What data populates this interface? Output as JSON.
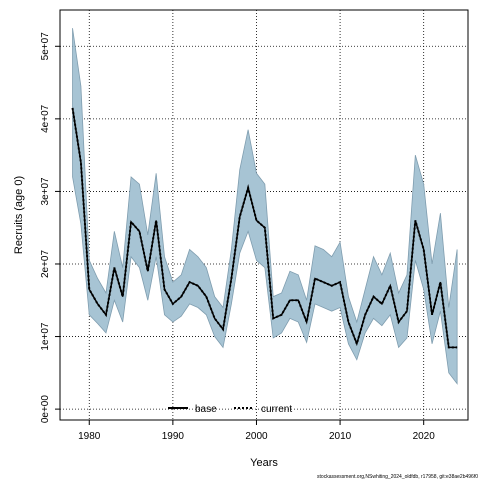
{
  "chart_data": {
    "type": "line",
    "xlabel": "Years",
    "ylabel": "Recruits (age 0)",
    "xlim": [
      1976.5,
      2025.3
    ],
    "ylim": [
      -1500000,
      55000000
    ],
    "x_ticks": [
      1980,
      1990,
      2000,
      2010,
      2020
    ],
    "x_tick_labels": [
      "1980",
      "1990",
      "2000",
      "2010",
      "2020"
    ],
    "y_ticks": [
      0,
      10000000,
      20000000,
      30000000,
      40000000,
      50000000
    ],
    "y_tick_labels": [
      "0e+00",
      "1e+07",
      "2e+07",
      "3e+07",
      "4e+07",
      "5e+07"
    ],
    "grid": true,
    "legend_position": "bottom-center",
    "footer": "stockassessment.org,NSwhiting_2024_oldfdb, r17958, git:e38ae2b496f0",
    "colors": {
      "band": "#a7c4d4",
      "band_edge": "#7f9daf",
      "line": "#000000"
    },
    "x": [
      1978,
      1979,
      1980,
      1981,
      1982,
      1983,
      1984,
      1985,
      1986,
      1987,
      1988,
      1989,
      1990,
      1991,
      1992,
      1993,
      1994,
      1995,
      1996,
      1997,
      1998,
      1999,
      2000,
      2001,
      2002,
      2003,
      2004,
      2005,
      2006,
      2007,
      2008,
      2009,
      2010,
      2011,
      2012,
      2013,
      2014,
      2015,
      2016,
      2017,
      2018,
      2019,
      2020,
      2021,
      2022,
      2023,
      2024
    ],
    "series": [
      {
        "name": "base",
        "style": "solid",
        "values": [
          41500000,
          34000000,
          16500000,
          14500000,
          13000000,
          19500000,
          15500000,
          25800000,
          24500000,
          19000000,
          26000000,
          16500000,
          14500000,
          15500000,
          17500000,
          17000000,
          15500000,
          12500000,
          11000000,
          18000000,
          26500000,
          30500000,
          26000000,
          25000000,
          12500000,
          13000000,
          15000000,
          15000000,
          12000000,
          18000000,
          17500000,
          17000000,
          17500000,
          12000000,
          9000000,
          13000000,
          15500000,
          14500000,
          17000000,
          12000000,
          13500000,
          26000000,
          22000000,
          13000000,
          17500000,
          8500000,
          8500000
        ],
        "lower": [
          32000000,
          25500000,
          13000000,
          11800000,
          10500000,
          15000000,
          12000000,
          21000000,
          19500000,
          15000000,
          21000000,
          13000000,
          12000000,
          12800000,
          14500000,
          14000000,
          13000000,
          10000000,
          8500000,
          14500000,
          21500000,
          24500000,
          20500000,
          19500000,
          9800000,
          10500000,
          12500000,
          12000000,
          9200000,
          14500000,
          14000000,
          13500000,
          14000000,
          9000000,
          6800000,
          10500000,
          12500000,
          11500000,
          13000000,
          8500000,
          9800000,
          20500000,
          16500000,
          9000000,
          13500000,
          5000000,
          3500000
        ],
        "upper": [
          52500000,
          44500000,
          20500000,
          18000000,
          16000000,
          24500000,
          19500000,
          32000000,
          31000000,
          24000000,
          32500000,
          21000000,
          17500000,
          18500000,
          22000000,
          21000000,
          19500000,
          15500000,
          14000000,
          22000000,
          33000000,
          38500000,
          32500000,
          31000000,
          15500000,
          16000000,
          19000000,
          18500000,
          15000000,
          22500000,
          22000000,
          21000000,
          23000000,
          15500000,
          12000000,
          16500000,
          21000000,
          18500000,
          21500000,
          16000000,
          18500000,
          35000000,
          31000000,
          20000000,
          27000000,
          14000000,
          22000000
        ]
      },
      {
        "name": "current",
        "style": "dotted",
        "values": [
          41500000,
          34000000,
          16500000,
          14500000,
          13000000,
          19500000,
          15500000,
          25800000,
          24500000,
          19000000,
          26000000,
          16500000,
          14500000,
          15500000,
          17500000,
          17000000,
          15500000,
          12500000,
          11000000,
          18000000,
          26500000,
          30500000,
          26000000,
          25000000,
          12500000,
          13000000,
          15000000,
          15000000,
          12000000,
          18000000,
          17500000,
          17000000,
          17500000,
          12000000,
          9000000,
          13000000,
          15500000,
          14500000,
          17000000,
          12000000,
          13500000,
          26000000,
          22000000,
          13000000,
          17500000,
          8500000,
          8500000
        ]
      }
    ]
  }
}
